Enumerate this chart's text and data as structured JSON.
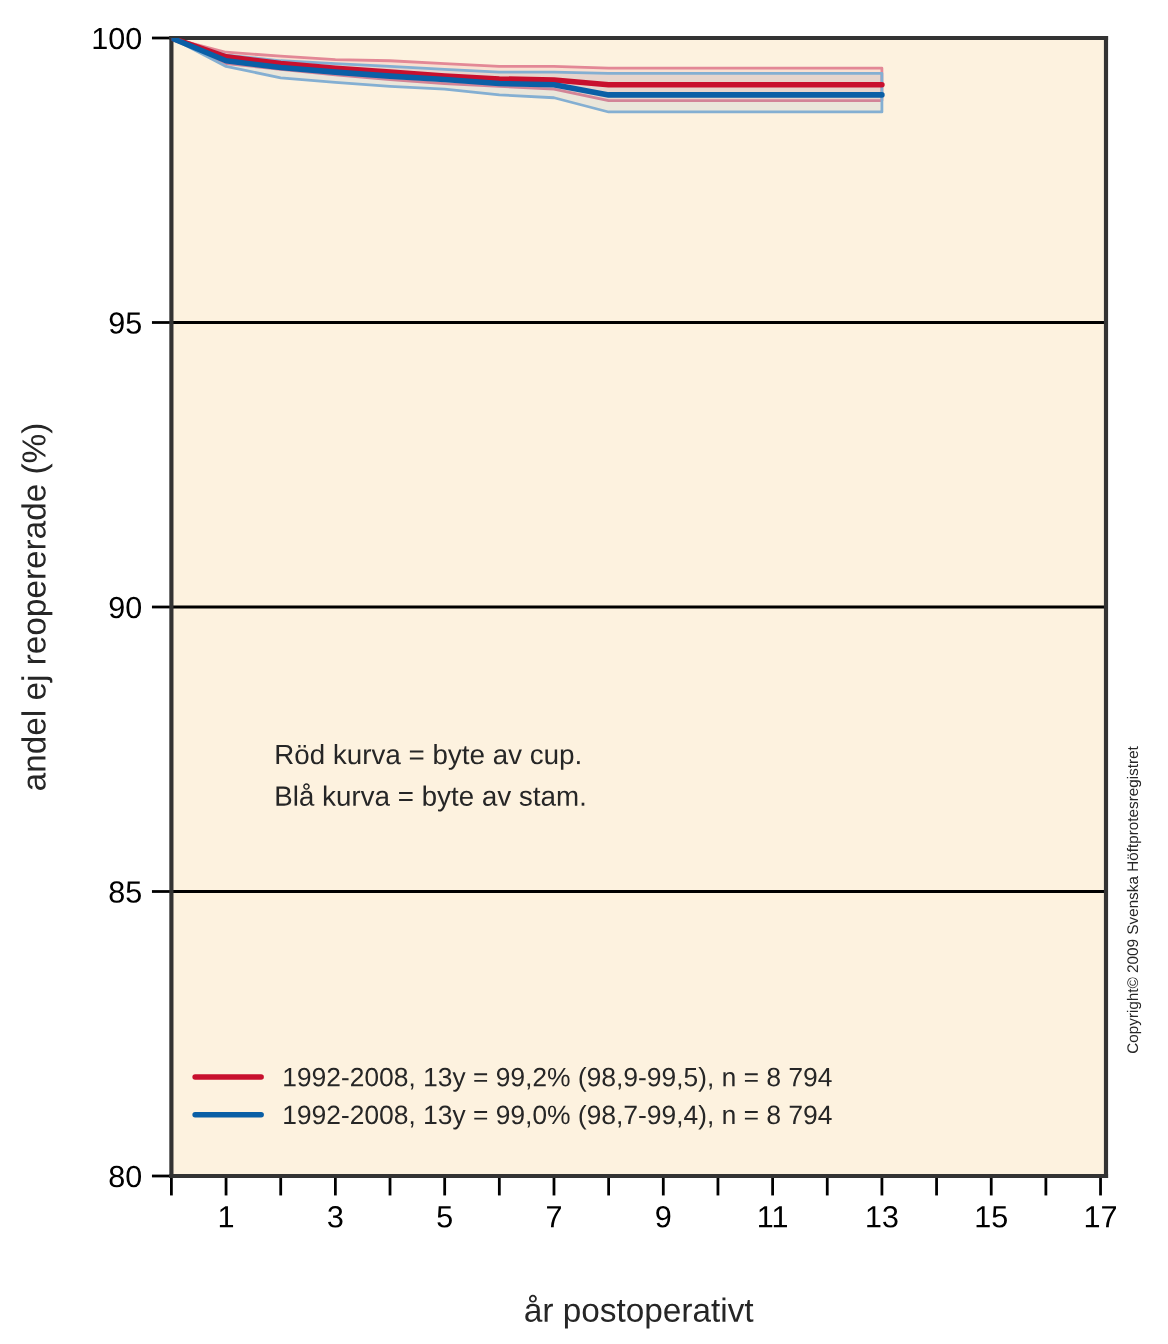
{
  "chart_data": {
    "type": "line",
    "xlabel": "år postoperativt",
    "ylabel": "andel ej reopererade (%)",
    "x": [
      0,
      1,
      2,
      3,
      4,
      5,
      6,
      7,
      8,
      9,
      10,
      11,
      12,
      13
    ],
    "series": [
      {
        "name": "1992-2008, 13y = 99,2% (98,9-99,5), n = 8 794",
        "color": "#c8102e",
        "values": [
          100,
          99.67,
          99.55,
          99.47,
          99.4,
          99.33,
          99.28,
          99.26,
          99.18,
          99.18,
          99.18,
          99.18,
          99.18,
          99.18
        ],
        "lower": [
          100,
          99.55,
          99.45,
          99.35,
          99.27,
          99.2,
          99.15,
          99.1,
          98.9,
          98.9,
          98.9,
          98.9,
          98.9,
          98.9
        ],
        "upper": [
          100,
          99.75,
          99.68,
          99.62,
          99.6,
          99.55,
          99.5,
          99.5,
          99.47,
          99.47,
          99.47,
          99.47,
          99.47,
          99.47
        ]
      },
      {
        "name": "1992-2008, 13y = 99,0% (98,7-99,4), n = 8 794",
        "color": "#0a5fa6",
        "values": [
          100,
          99.6,
          99.48,
          99.4,
          99.33,
          99.27,
          99.2,
          99.18,
          99.0,
          99.0,
          99.0,
          99.0,
          99.0,
          99.0
        ],
        "lower": [
          100,
          99.5,
          99.3,
          99.22,
          99.15,
          99.1,
          99.0,
          98.95,
          98.7,
          98.7,
          98.7,
          98.7,
          98.7,
          98.7
        ],
        "upper": [
          100,
          99.7,
          99.6,
          99.55,
          99.5,
          99.45,
          99.4,
          99.4,
          99.38,
          99.38,
          99.38,
          99.38,
          99.38,
          99.38
        ]
      }
    ],
    "xlim": [
      0,
      17.1
    ],
    "xticks": [
      {
        "value": 0,
        "label": null
      },
      1,
      {
        "value": 2,
        "label": null
      },
      3,
      {
        "value": 4,
        "label": null
      },
      5,
      {
        "value": 6,
        "label": null
      },
      7,
      {
        "value": 8,
        "label": null
      },
      9,
      {
        "value": 10,
        "label": null
      },
      11,
      {
        "value": 12,
        "label": null
      },
      13,
      {
        "value": 14,
        "label": null
      },
      15,
      {
        "value": 16,
        "label": null
      },
      17
    ],
    "ylim": [
      80,
      100
    ],
    "yticks": [
      80,
      85,
      90,
      95,
      100
    ],
    "grid": "y",
    "legend": "bottom left",
    "marker": "none",
    "line_style": "solid",
    "annotations": [
      "Röd kurva = byte av cup.\nBlå kurva = byte av stam.",
      "Copyright© 2009 Svenska Höftprotesregistret"
    ]
  }
}
